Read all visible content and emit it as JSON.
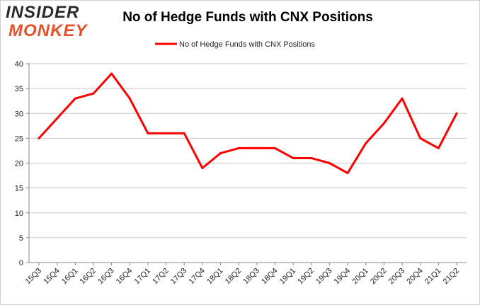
{
  "brand": {
    "logo_line1": "INSIDER",
    "logo_line2": "MONKEY",
    "colors": {
      "dark": "#2b2b2b",
      "accent": "#e8502b"
    }
  },
  "chart_data": {
    "type": "line",
    "title": "No of Hedge Funds with CNX Positions",
    "xlabel": "",
    "ylabel": "",
    "ylim": [
      0,
      40
    ],
    "yticks": [
      0,
      5,
      10,
      15,
      20,
      25,
      30,
      35,
      40
    ],
    "grid": true,
    "legend_position": "top-center",
    "categories": [
      "15Q3",
      "15Q4",
      "16Q1",
      "16Q2",
      "16Q3",
      "16Q4",
      "17Q1",
      "17Q2",
      "17Q3",
      "17Q4",
      "18Q1",
      "18Q2",
      "18Q3",
      "18Q4",
      "19Q1",
      "19Q2",
      "19Q3",
      "19Q4",
      "20Q1",
      "20Q2",
      "20Q3",
      "20Q4",
      "21Q1",
      "21Q2"
    ],
    "series": [
      {
        "name": "No of Hedge Funds with CNX Positions",
        "color": "#ff0000",
        "values": [
          25,
          29,
          33,
          34,
          38,
          33,
          26,
          26,
          26,
          19,
          22,
          23,
          23,
          23,
          21,
          21,
          20,
          18,
          24,
          28,
          33,
          25,
          23,
          30
        ]
      }
    ]
  }
}
